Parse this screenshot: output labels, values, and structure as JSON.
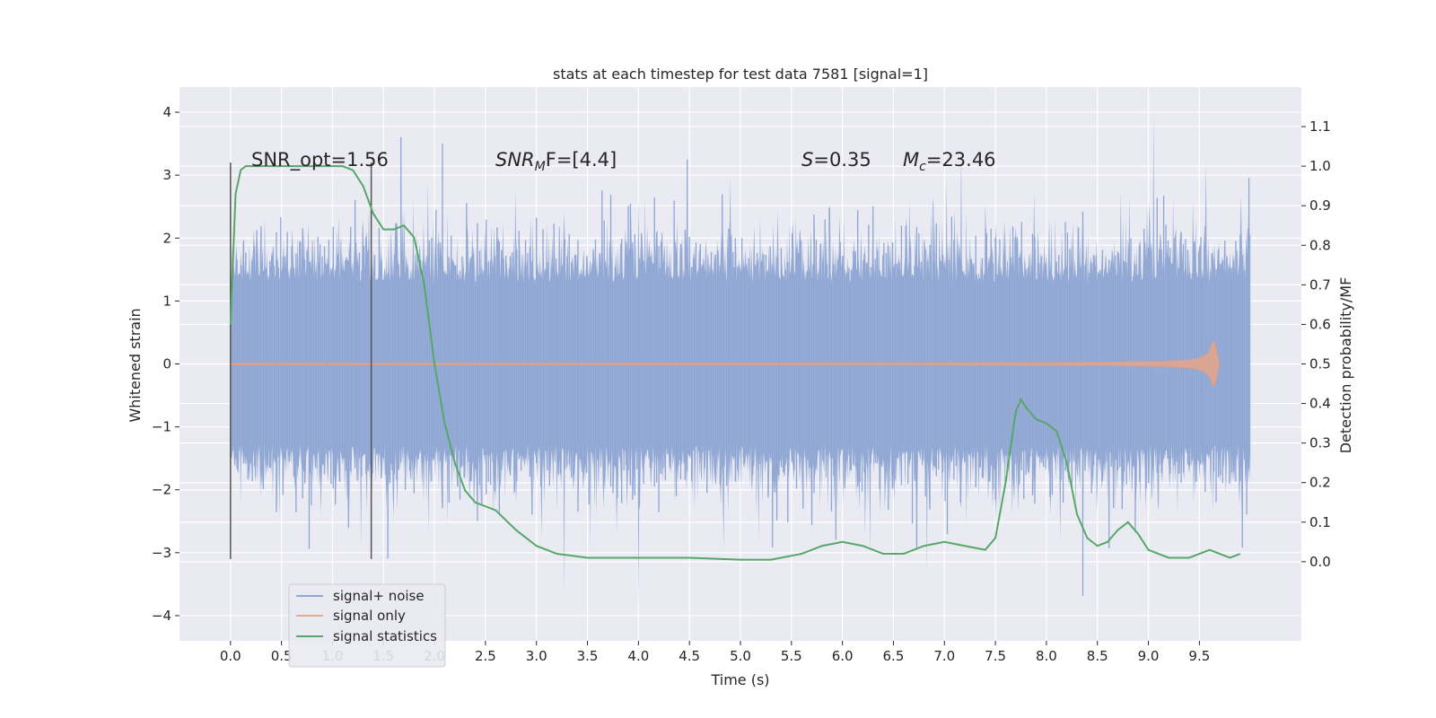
{
  "chart_data": {
    "type": "line",
    "title": "stats at each timestep for test data 7581 [signal=1]",
    "xlabel": "Time (s)",
    "ylabel_left": "Whitened strain",
    "ylabel_right": "Detection probability/MF",
    "xlim": [
      -0.5,
      10.5
    ],
    "ylim_left": [
      -4.4,
      4.4
    ],
    "ylim_right": [
      -0.2,
      1.2
    ],
    "x_ticks": [
      "0.0",
      "0.5",
      "1.0",
      "1.5",
      "2.0",
      "2.5",
      "3.0",
      "3.5",
      "4.0",
      "4.5",
      "5.0",
      "5.5",
      "6.0",
      "6.5",
      "7.0",
      "7.5",
      "8.0",
      "8.5",
      "9.0",
      "9.5"
    ],
    "y_ticks_left": [
      "4",
      "3",
      "2",
      "1",
      "0",
      "−1",
      "−2",
      "−3",
      "−4"
    ],
    "y_ticks_right": [
      "1.1",
      "1.0",
      "0.9",
      "0.8",
      "0.7",
      "0.6",
      "0.5",
      "0.4",
      "0.3",
      "0.2",
      "0.1",
      "0.0"
    ],
    "grid": true,
    "legend_placement": "lower-left",
    "annotations": {
      "snr_opt": "SNR_opt=1.56",
      "snr_mf_italic": "SNR",
      "snr_mf_sub": "M",
      "snr_mf_tail": "F=[4.4]",
      "s_italic": "S",
      "s_tail": "=0.35",
      "mc_italic": "M",
      "mc_sub": "c",
      "mc_tail": "=23.46"
    },
    "vertical_markers_x": [
      0.0,
      1.38
    ],
    "series": [
      {
        "name": "signal+ noise",
        "color": "#8faade",
        "axis": "left",
        "kind": "strain",
        "x_range": [
          0.0,
          10.0
        ],
        "typical_band": [
          -1.3,
          1.3
        ],
        "extreme_range": [
          -3.9,
          4.05
        ]
      },
      {
        "name": "signal only",
        "color": "#dd8452",
        "axis": "left",
        "kind": "chirp",
        "x_range": [
          0.0,
          9.7
        ],
        "peak_x": 9.65,
        "peak_amplitude": 0.35
      },
      {
        "name": "signal statistics",
        "color": "#55a868",
        "axis": "right",
        "x": [
          0.0,
          0.05,
          0.1,
          0.15,
          0.2,
          0.3,
          0.5,
          0.8,
          1.0,
          1.1,
          1.2,
          1.3,
          1.4,
          1.5,
          1.6,
          1.7,
          1.8,
          1.9,
          2.0,
          2.1,
          2.2,
          2.3,
          2.4,
          2.6,
          2.8,
          3.0,
          3.2,
          3.5,
          4.0,
          4.5,
          5.0,
          5.3,
          5.6,
          5.8,
          6.0,
          6.2,
          6.4,
          6.6,
          6.8,
          7.0,
          7.2,
          7.4,
          7.5,
          7.6,
          7.7,
          7.75,
          7.8,
          7.9,
          8.0,
          8.1,
          8.2,
          8.3,
          8.4,
          8.5,
          8.6,
          8.7,
          8.8,
          8.9,
          9.0,
          9.2,
          9.4,
          9.5,
          9.6,
          9.7,
          9.8,
          9.9
        ],
        "values": [
          0.6,
          0.93,
          0.99,
          1.0,
          1.0,
          1.0,
          1.0,
          1.0,
          1.0,
          1.0,
          0.99,
          0.95,
          0.88,
          0.84,
          0.84,
          0.85,
          0.82,
          0.7,
          0.5,
          0.35,
          0.25,
          0.18,
          0.15,
          0.13,
          0.08,
          0.04,
          0.02,
          0.01,
          0.01,
          0.01,
          0.005,
          0.005,
          0.02,
          0.04,
          0.05,
          0.04,
          0.02,
          0.02,
          0.04,
          0.05,
          0.04,
          0.03,
          0.06,
          0.2,
          0.38,
          0.41,
          0.39,
          0.36,
          0.35,
          0.33,
          0.25,
          0.12,
          0.06,
          0.04,
          0.05,
          0.08,
          0.1,
          0.07,
          0.03,
          0.01,
          0.01,
          0.02,
          0.03,
          0.02,
          0.01,
          0.02
        ]
      }
    ]
  }
}
